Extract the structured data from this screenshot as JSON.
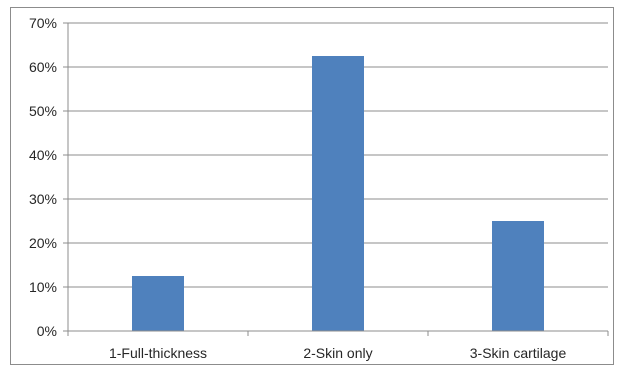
{
  "chart_data": {
    "type": "bar",
    "title": "",
    "xlabel": "",
    "ylabel": "",
    "categories": [
      "1-Full-thickness",
      "2-Skin only",
      "3-Skin cartilage"
    ],
    "series": [
      {
        "values": [
          12.5,
          62.5,
          25.0
        ],
        "color": "#4f81bd"
      }
    ],
    "ylim": [
      0,
      70
    ],
    "yticks": [
      "0%",
      "10%",
      "20%",
      "30%",
      "40%",
      "50%",
      "60%",
      "70%"
    ],
    "grid": true,
    "legend": "none"
  }
}
